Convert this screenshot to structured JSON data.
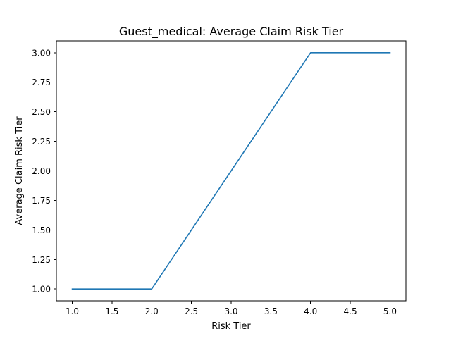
{
  "chart_data": {
    "type": "line",
    "title": "Guest_medical: Average Claim Risk Tier",
    "xlabel": "Risk Tier",
    "ylabel": "Average Claim Risk Tier",
    "xlim": [
      0.8,
      5.2
    ],
    "ylim": [
      0.9,
      3.1
    ],
    "xticks": [
      1.0,
      1.5,
      2.0,
      2.5,
      3.0,
      3.5,
      4.0,
      4.5,
      5.0
    ],
    "xtick_labels": [
      "1.0",
      "1.5",
      "2.0",
      "2.5",
      "3.0",
      "3.5",
      "4.0",
      "4.5",
      "5.0"
    ],
    "yticks": [
      1.0,
      1.25,
      1.5,
      1.75,
      2.0,
      2.25,
      2.5,
      2.75,
      3.0
    ],
    "ytick_labels": [
      "1.00",
      "1.25",
      "1.50",
      "1.75",
      "2.00",
      "2.25",
      "2.50",
      "2.75",
      "3.00"
    ],
    "grid": false,
    "series": [
      {
        "color": "#1f77b4",
        "x": [
          1,
          2,
          3,
          4,
          5
        ],
        "y": [
          1,
          1,
          2,
          3,
          3
        ]
      }
    ]
  }
}
